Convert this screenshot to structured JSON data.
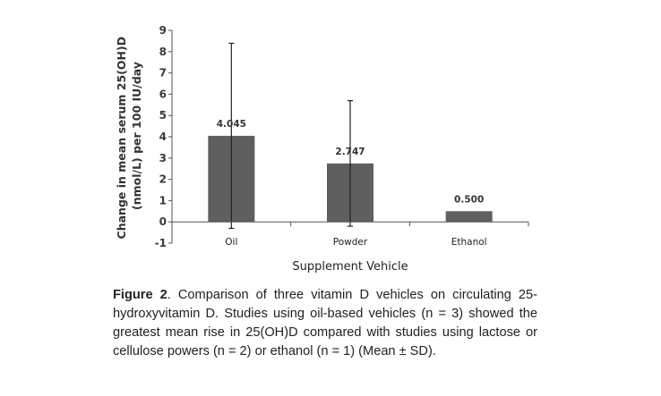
{
  "chart_data": {
    "type": "bar",
    "categories": [
      "Oil",
      "Powder",
      "Ethanol"
    ],
    "values": [
      4.045,
      2.747,
      0.5
    ],
    "data_labels": [
      "4.045",
      "2.747",
      "0.500"
    ],
    "error_sd": [
      4.35,
      2.95,
      null
    ],
    "xlabel": "Supplement Vehicle",
    "ylabel_lines": [
      "Change in mean serum 25(OH)D",
      "(nmol/L) per 100 IU/day"
    ],
    "ylim": [
      -1,
      9
    ],
    "yticks": [
      -1,
      0,
      1,
      2,
      3,
      4,
      5,
      6,
      7,
      8,
      9
    ],
    "grid": false,
    "bar_color": "#5f5f5f"
  },
  "caption": {
    "label": "Figure 2",
    "text": ". Comparison of three vitamin D vehicles on circulating 25-hydroxyvitamin D. Studies using oil-based vehicles (n = 3) showed the greatest mean rise in 25(OH)D compared with studies using lactose or cellulose powers (n = 2) or ethanol (n = 1) (Mean ± SD)."
  }
}
